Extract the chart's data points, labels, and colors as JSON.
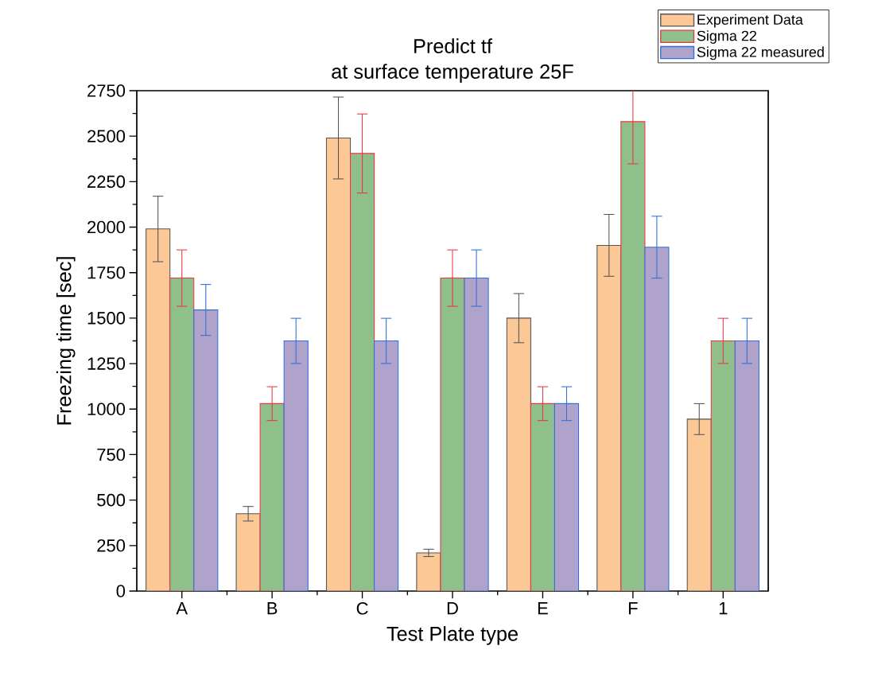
{
  "chart_data": {
    "type": "bar",
    "title": "Predict tf",
    "subtitle": "at surface temperature 25F",
    "xlabel": "Test Plate type",
    "ylabel": "Freezing time [sec]",
    "categories": [
      "A",
      "B",
      "C",
      "D",
      "E",
      "F",
      "1"
    ],
    "series": [
      {
        "name": "Experiment Data",
        "color": "#fbc896",
        "values": [
          1990,
          425,
          2490,
          210,
          1500,
          1900,
          945
        ],
        "errors": [
          180,
          40,
          225,
          20,
          135,
          170,
          85
        ]
      },
      {
        "name": "Sigma 22",
        "color": "#8fbf8a",
        "values": [
          1720,
          1030,
          2405,
          1720,
          1030,
          2580,
          1375
        ],
        "errors": [
          155,
          93,
          217,
          155,
          93,
          232,
          124
        ]
      },
      {
        "name": "Sigma 22 measured",
        "color": "#b0a3cb",
        "values": [
          1545,
          1375,
          1375,
          1720,
          1030,
          1890,
          1375
        ],
        "errors": [
          140,
          124,
          124,
          155,
          93,
          170,
          124
        ]
      }
    ],
    "ylim": [
      0,
      2750
    ],
    "yticks": [
      0,
      250,
      500,
      750,
      1000,
      1250,
      1500,
      1750,
      2000,
      2250,
      2500,
      2750
    ],
    "grid": false,
    "legend": "top right"
  }
}
